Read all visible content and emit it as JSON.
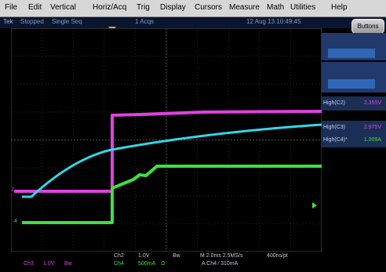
{
  "menu": {
    "items": [
      "File",
      "Edit",
      "Vertical",
      "Horiz/Acq",
      "Trig",
      "Display",
      "Cursors",
      "Measure",
      "Math",
      "Utilities",
      "Help"
    ]
  },
  "status": {
    "brand": "Tek",
    "state": "Stopped",
    "mode": "Single Seq",
    "acqs": "1 Acqs",
    "datetime": "12 Aug 13 10:49:45"
  },
  "buttons_label": "Buttons",
  "measurements": [
    {
      "label": "High(C2)",
      "value": "2.355V",
      "color": "#e040e0"
    },
    {
      "label": "High(C3)",
      "value": "2.975V",
      "color": "#30d8e8"
    },
    {
      "label": "High(C4)*",
      "value": "1.009A",
      "color": "#40e040"
    }
  ],
  "markers": {
    "ch2": "2",
    "ch4": "4"
  },
  "bottom": {
    "ch3_name": "Ch3",
    "ch3_scale": "1.0V",
    "ch3_bw": "Bw",
    "ch2_name": "Ch2",
    "ch2_scale": "1.0V",
    "ch2_bw": "Bw",
    "ch4_name": "Ch4",
    "ch4_scale": "500mA",
    "ch4_unit": "Ω",
    "timebase": "M 2.0ms 2.5MS/s",
    "resolution": "400ns/pt",
    "trigger": "A  Ch4  ∕  310mA"
  },
  "colors": {
    "ch2": "#e040e0",
    "ch3": "#30d8e8",
    "ch4": "#3ee03e",
    "trigger": "#e8a030",
    "menubar": "#d7d7d7"
  }
}
